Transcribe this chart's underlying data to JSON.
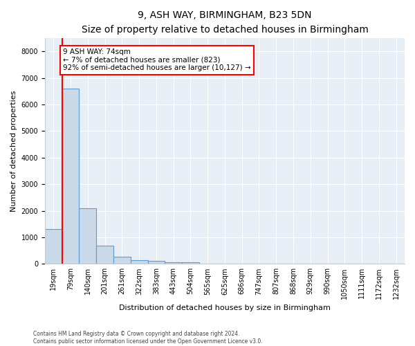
{
  "title1": "9, ASH WAY, BIRMINGHAM, B23 5DN",
  "title2": "Size of property relative to detached houses in Birmingham",
  "xlabel": "Distribution of detached houses by size in Birmingham",
  "ylabel": "Number of detached properties",
  "categories": [
    "19sqm",
    "79sqm",
    "140sqm",
    "201sqm",
    "261sqm",
    "322sqm",
    "383sqm",
    "443sqm",
    "504sqm",
    "565sqm",
    "625sqm",
    "686sqm",
    "747sqm",
    "807sqm",
    "868sqm",
    "929sqm",
    "990sqm",
    "1050sqm",
    "1111sqm",
    "1172sqm",
    "1232sqm"
  ],
  "values": [
    1300,
    6600,
    2100,
    680,
    280,
    140,
    100,
    60,
    60,
    0,
    0,
    0,
    0,
    0,
    0,
    0,
    0,
    0,
    0,
    0,
    0
  ],
  "bar_color": "#c9d9e8",
  "bar_edge_color": "#5b9bd5",
  "annotation_text": "9 ASH WAY: 74sqm\n← 7% of detached houses are smaller (823)\n92% of semi-detached houses are larger (10,127) →",
  "annotation_box_color": "white",
  "annotation_box_edge_color": "red",
  "vline_color": "red",
  "vline_x": 0.5,
  "ylim": [
    0,
    8500
  ],
  "yticks": [
    0,
    1000,
    2000,
    3000,
    4000,
    5000,
    6000,
    7000,
    8000
  ],
  "footer1": "Contains HM Land Registry data © Crown copyright and database right 2024.",
  "footer2": "Contains public sector information licensed under the Open Government Licence v3.0.",
  "background_color": "#e8eef6",
  "plot_background": "white",
  "title1_fontsize": 10,
  "title2_fontsize": 9,
  "xlabel_fontsize": 8,
  "ylabel_fontsize": 8,
  "tick_fontsize": 7,
  "annot_fontsize": 7.5,
  "footer_fontsize": 5.5
}
